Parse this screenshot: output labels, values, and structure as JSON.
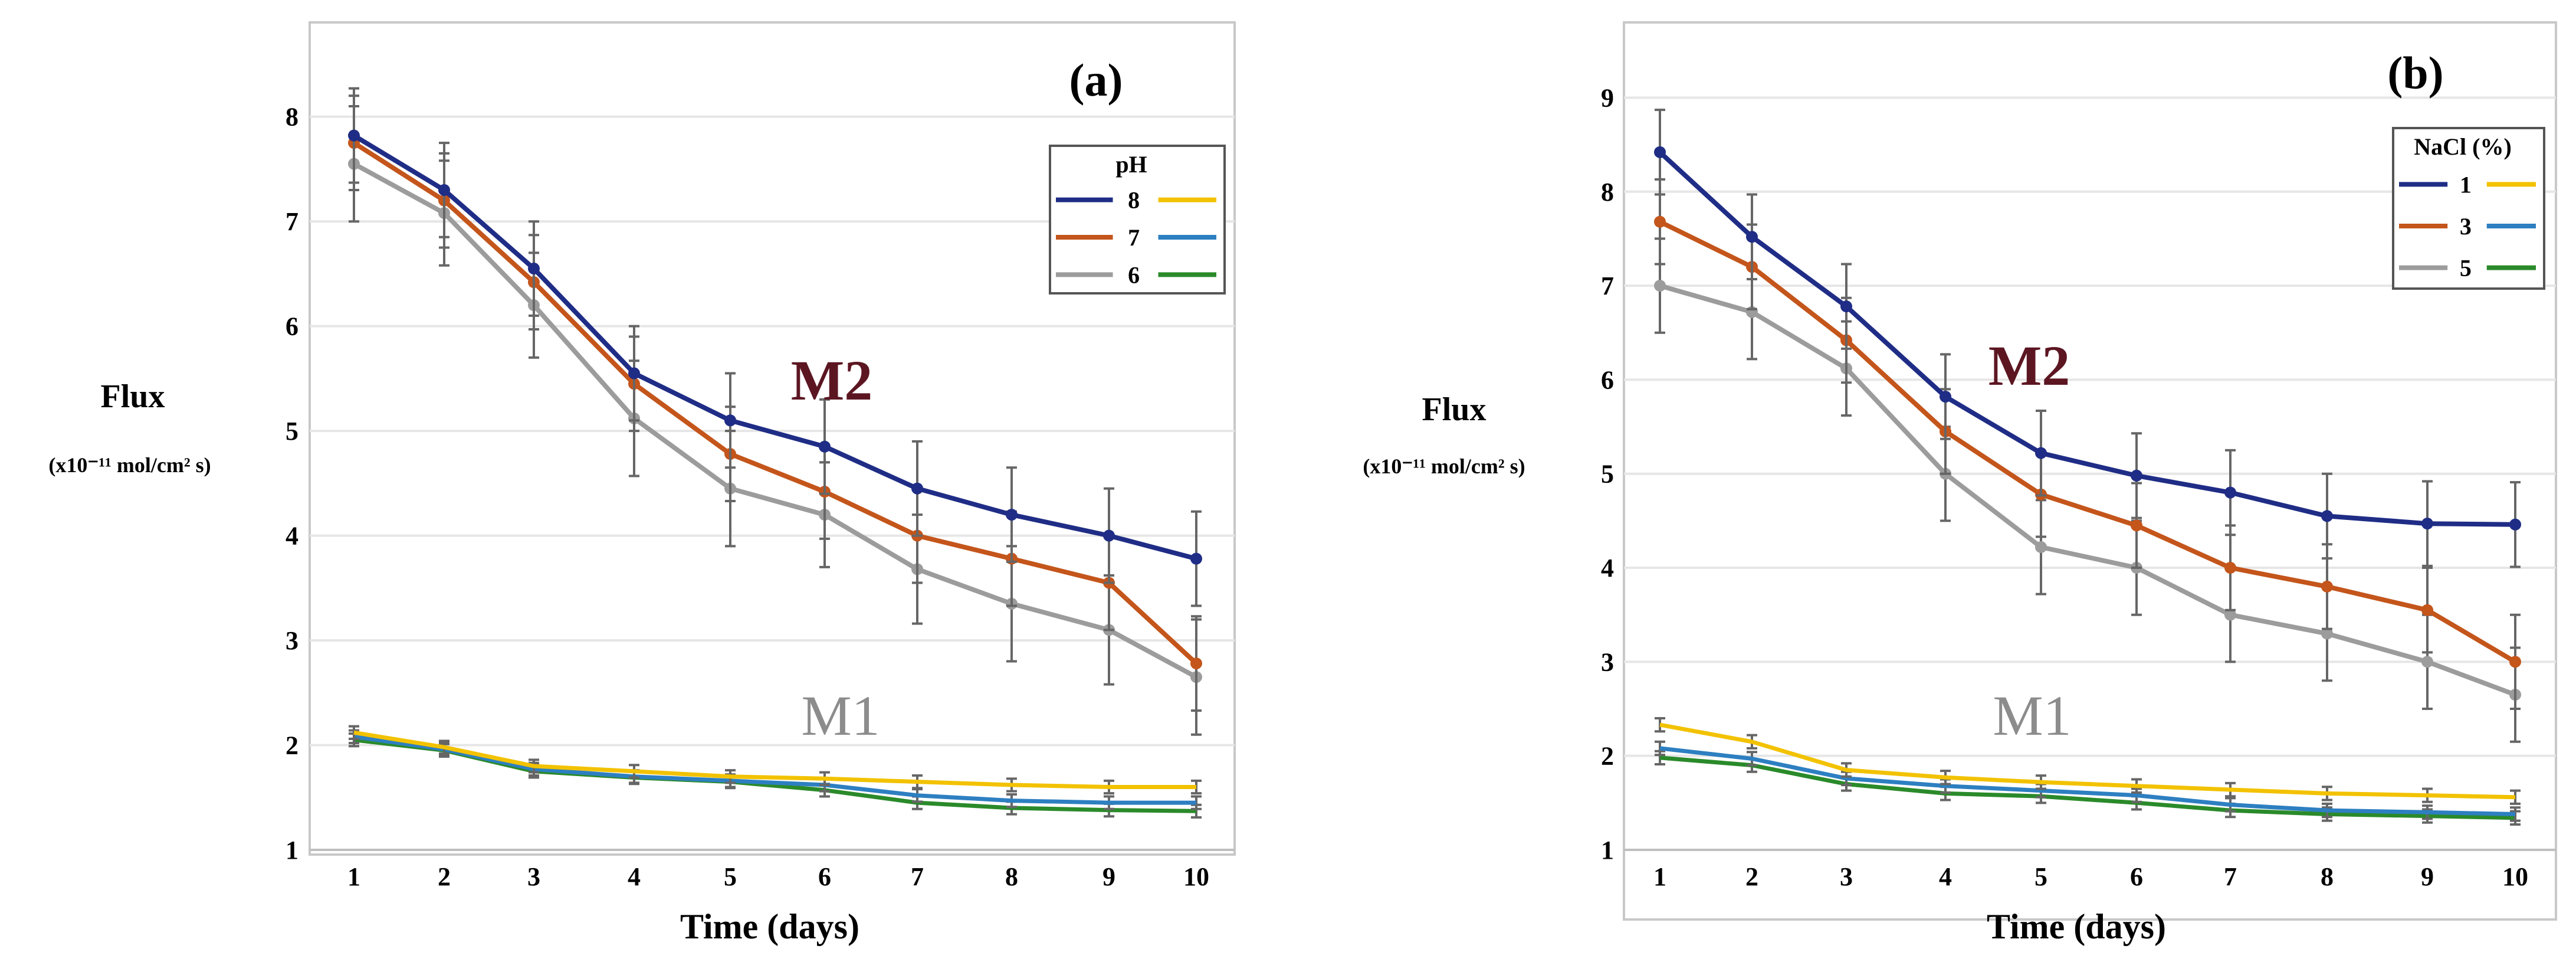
{
  "colors": {
    "m2_series": [
      "#1f2d86",
      "#c4551b",
      "#9c9c9c"
    ],
    "m1_series": [
      "#f2c200",
      "#2d7fc1",
      "#2a8a2a"
    ],
    "error_bar": "#666666"
  },
  "chart_data": [
    {
      "type": "line",
      "panel_label": "(a)",
      "xlabel": "Time (days)",
      "ylabel": "Flux",
      "ylabel_unit": "(x10⁻¹¹ mol/cm² s)",
      "x": [
        1,
        2,
        3,
        4,
        5,
        6,
        7,
        8,
        9,
        10
      ],
      "ylim": [
        1,
        8.9
      ],
      "yticks": [
        "1",
        "2",
        "3",
        "4",
        "5",
        "6",
        "7",
        "8"
      ],
      "xticks": [
        "1",
        "2",
        "3",
        "4",
        "5",
        "6",
        "7",
        "8",
        "9",
        "10"
      ],
      "annotations": {
        "m2": "M2",
        "m1": "M1"
      },
      "legend": {
        "title": "pH",
        "entries": [
          "8",
          "7",
          "6"
        ],
        "position": "top-right"
      },
      "series_m2": [
        {
          "name": "8",
          "values": [
            7.82,
            7.3,
            6.55,
            5.55,
            5.1,
            4.85,
            4.45,
            4.2,
            4.0,
            3.78
          ],
          "error": [
            0.45,
            0.45,
            0.45,
            0.45,
            0.45,
            0.45,
            0.45,
            0.45,
            0.45,
            0.45
          ]
        },
        {
          "name": "7",
          "values": [
            7.75,
            7.2,
            6.42,
            5.45,
            4.78,
            4.42,
            4.0,
            3.78,
            3.55,
            2.78
          ],
          "error": [
            0.45,
            0.45,
            0.45,
            0.45,
            0.45,
            0.45,
            0.45,
            0.45,
            0.45,
            0.45
          ]
        },
        {
          "name": "6",
          "values": [
            7.55,
            7.08,
            6.2,
            5.12,
            4.45,
            4.2,
            3.68,
            3.35,
            3.1,
            2.65
          ],
          "error": [
            0.55,
            0.5,
            0.5,
            0.55,
            0.55,
            0.5,
            0.52,
            0.55,
            0.52,
            0.55
          ]
        }
      ],
      "series_m1": [
        {
          "name": "8",
          "values": [
            2.12,
            1.98,
            1.8,
            1.75,
            1.7,
            1.68,
            1.65,
            1.62,
            1.6,
            1.6
          ],
          "error": [
            0.06,
            0.06,
            0.06,
            0.06,
            0.06,
            0.06,
            0.06,
            0.06,
            0.06,
            0.06
          ]
        },
        {
          "name": "7",
          "values": [
            2.08,
            1.96,
            1.77,
            1.7,
            1.66,
            1.62,
            1.52,
            1.47,
            1.45,
            1.45
          ],
          "error": [
            0.06,
            0.06,
            0.06,
            0.06,
            0.06,
            0.06,
            0.06,
            0.06,
            0.06,
            0.06
          ]
        },
        {
          "name": "6",
          "values": [
            2.05,
            1.95,
            1.75,
            1.69,
            1.65,
            1.57,
            1.45,
            1.4,
            1.38,
            1.37
          ],
          "error": [
            0.06,
            0.06,
            0.06,
            0.06,
            0.06,
            0.06,
            0.06,
            0.06,
            0.06,
            0.06
          ]
        }
      ]
    },
    {
      "type": "line",
      "panel_label": "(b)",
      "xlabel": "Time (days)",
      "ylabel": "Flux",
      "ylabel_unit": "(x10⁻¹¹ mol/cm² s)",
      "x": [
        1,
        2,
        3,
        4,
        5,
        6,
        7,
        8,
        9,
        10
      ],
      "ylim": [
        1,
        9.8
      ],
      "yticks": [
        "1",
        "2",
        "3",
        "4",
        "5",
        "6",
        "7",
        "8",
        "9"
      ],
      "xticks": [
        "1",
        "2",
        "3",
        "4",
        "5",
        "6",
        "7",
        "8",
        "9",
        "10"
      ],
      "annotations": {
        "m2": "M2",
        "m1": "M1"
      },
      "legend": {
        "title": "NaCl (%)",
        "entries": [
          "1",
          "3",
          "5"
        ],
        "position": "top-right"
      },
      "series_m2": [
        {
          "name": "1",
          "values": [
            8.42,
            7.52,
            6.78,
            5.82,
            5.22,
            4.98,
            4.8,
            4.55,
            4.47,
            4.46
          ],
          "error": [
            0.45,
            0.45,
            0.45,
            0.45,
            0.45,
            0.45,
            0.45,
            0.45,
            0.45,
            0.45
          ]
        },
        {
          "name": "3",
          "values": [
            7.68,
            7.2,
            6.42,
            5.45,
            4.78,
            4.45,
            4.0,
            3.8,
            3.55,
            3.0
          ],
          "error": [
            0.45,
            0.45,
            0.45,
            0.45,
            0.45,
            0.45,
            0.45,
            0.45,
            0.45,
            0.5
          ]
        },
        {
          "name": "5",
          "values": [
            7.0,
            6.72,
            6.12,
            5.0,
            4.22,
            4.0,
            3.5,
            3.3,
            3.0,
            2.65
          ],
          "error": [
            0.5,
            0.5,
            0.5,
            0.5,
            0.5,
            0.5,
            0.5,
            0.5,
            0.5,
            0.5
          ]
        }
      ],
      "series_m1": [
        {
          "name": "1",
          "values": [
            2.33,
            2.15,
            1.85,
            1.77,
            1.72,
            1.68,
            1.64,
            1.6,
            1.58,
            1.56
          ],
          "error": [
            0.07,
            0.07,
            0.07,
            0.07,
            0.07,
            0.07,
            0.07,
            0.07,
            0.07,
            0.07
          ]
        },
        {
          "name": "3",
          "values": [
            2.08,
            1.97,
            1.76,
            1.68,
            1.63,
            1.58,
            1.48,
            1.42,
            1.4,
            1.38
          ],
          "error": [
            0.07,
            0.07,
            0.07,
            0.07,
            0.07,
            0.07,
            0.07,
            0.07,
            0.07,
            0.07
          ]
        },
        {
          "name": "5",
          "values": [
            1.98,
            1.9,
            1.7,
            1.6,
            1.57,
            1.5,
            1.42,
            1.38,
            1.36,
            1.34
          ],
          "error": [
            0.07,
            0.07,
            0.07,
            0.07,
            0.07,
            0.07,
            0.07,
            0.07,
            0.07,
            0.07
          ]
        }
      ]
    }
  ]
}
